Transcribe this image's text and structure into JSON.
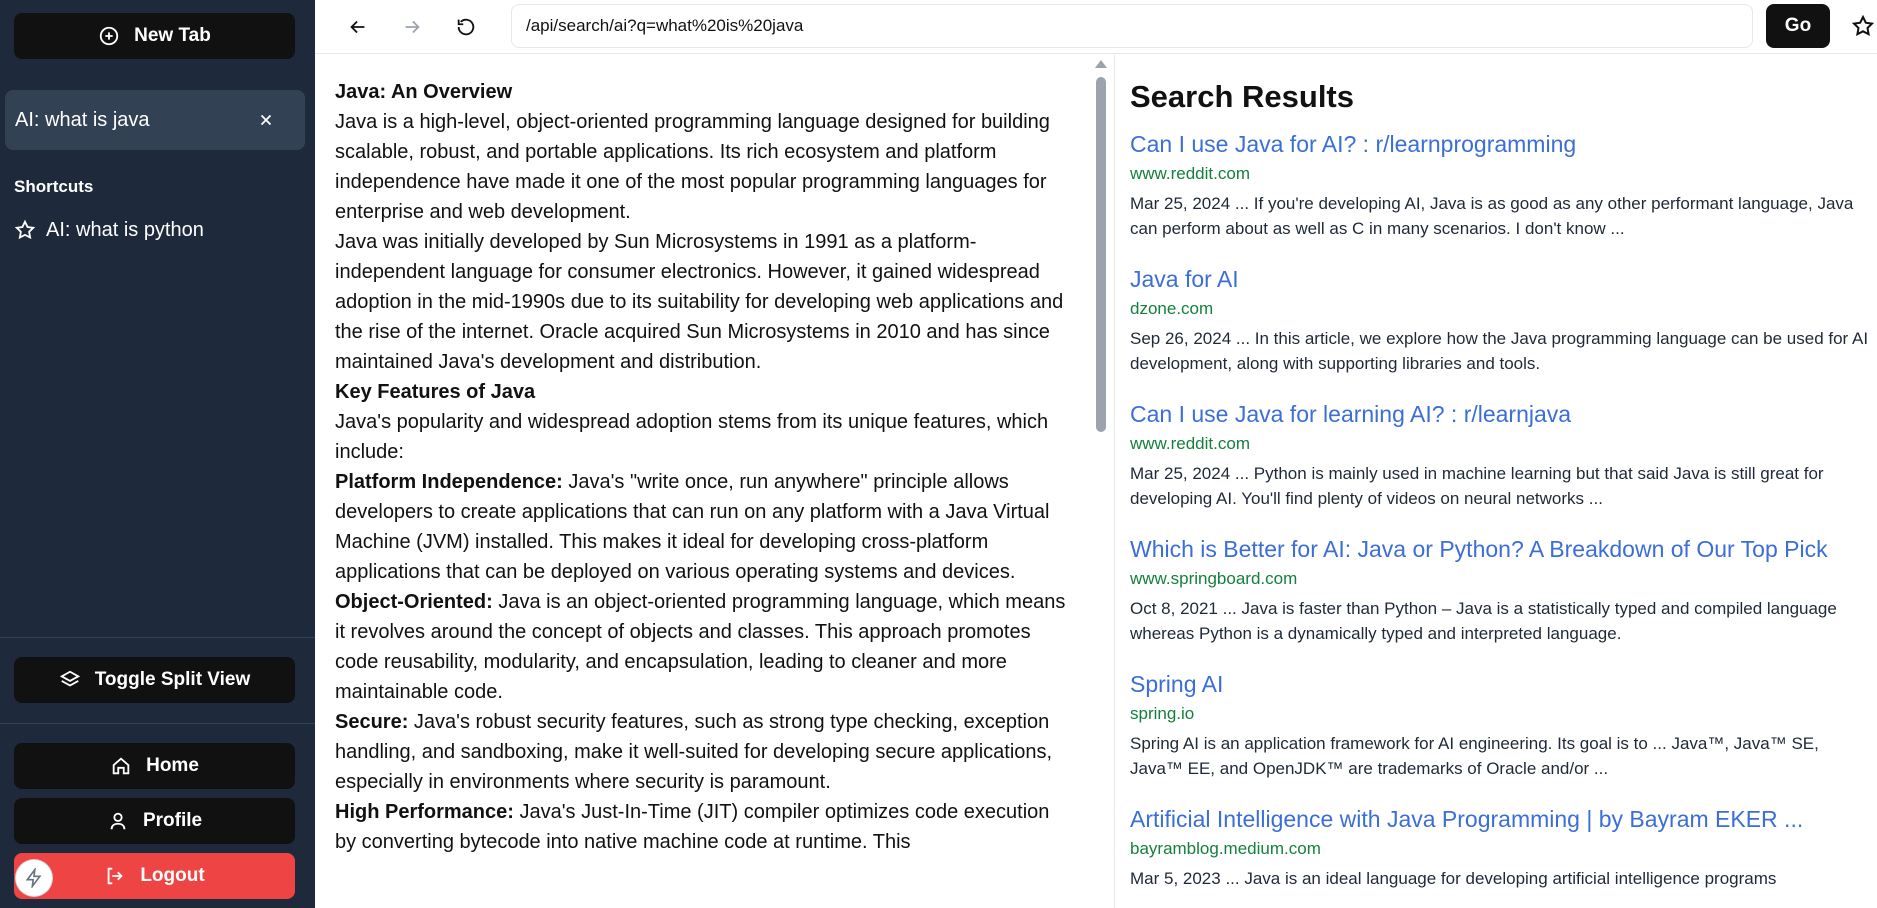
{
  "sidebar": {
    "new_tab_label": "New Tab",
    "active_tab_label": "AI: what is java",
    "shortcuts_heading": "Shortcuts",
    "shortcuts": [
      {
        "label": "AI: what is python",
        "icon": "star-icon"
      }
    ],
    "toggle_split_label": "Toggle Split View",
    "home_label": "Home",
    "profile_label": "Profile",
    "logout_label": "Logout"
  },
  "toolbar": {
    "url_value": "/api/search/ai?q=what%20is%20java",
    "go_label": "Go"
  },
  "article": {
    "h1": "Java: An Overview",
    "p1": "Java is a high-level, object-oriented programming language designed for building scalable, robust, and portable applications. Its rich ecosystem and platform independence have made it one of the most popular programming languages for enterprise and web development.",
    "p2": "Java was initially developed by Sun Microsystems in 1991 as a platform-independent language for consumer electronics. However, it gained widespread adoption in the mid-1990s due to its suitability for developing web applications and the rise of the internet. Oracle acquired Sun Microsystems in 2010 and has since maintained Java's development and distribution.",
    "h2": "Key Features of Java",
    "p3": "Java's popularity and widespread adoption stems from its unique features, which include:",
    "features": [
      {
        "term": "Platform Independence:",
        "text": " Java's \"write once, run anywhere\" principle allows developers to create applications that can run on any platform with a Java Virtual Machine (JVM) installed. This makes it ideal for developing cross-platform applications that can be deployed on various operating systems and devices."
      },
      {
        "term": "Object-Oriented:",
        "text": " Java is an object-oriented programming language, which means it revolves around the concept of objects and classes. This approach promotes code reusability, modularity, and encapsulation, leading to cleaner and more maintainable code."
      },
      {
        "term": "Secure:",
        "text": " Java's robust security features, such as strong type checking, exception handling, and sandboxing, make it well-suited for developing secure applications, especially in environments where security is paramount."
      },
      {
        "term": "High Performance:",
        "text": " Java's Just-In-Time (JIT) compiler optimizes code execution by converting bytecode into native machine code at runtime. This"
      }
    ]
  },
  "results": {
    "heading": "Search Results",
    "items": [
      {
        "title": "Can I use Java for AI? : r/learnprogramming",
        "domain": "www.reddit.com",
        "snippet": "Mar 25, 2024 ... If you're developing AI, Java is as good as any other performant language, Java can perform about as well as C in many scenarios. I don't know ..."
      },
      {
        "title": "Java for AI",
        "domain": "dzone.com",
        "snippet": "Sep 26, 2024 ... In this article, we explore how the Java programming language can be used for AI development, along with supporting libraries and tools."
      },
      {
        "title": "Can I use Java for learning AI? : r/learnjava",
        "domain": "www.reddit.com",
        "snippet": "Mar 25, 2024 ... Python is mainly used in machine learning but that said Java is still great for developing AI. You'll find plenty of videos on neural networks ..."
      },
      {
        "title": "Which is Better for AI: Java or Python? A Breakdown of Our Top Pick",
        "domain": "www.springboard.com",
        "snippet": "Oct 8, 2021 ... Java is faster than Python – Java is a statistically typed and compiled language whereas Python is a dynamically typed and interpreted language."
      },
      {
        "title": "Spring AI",
        "domain": "spring.io",
        "snippet": "Spring AI is an application framework for AI engineering. Its goal is to ... Java™, Java™ SE, Java™ EE, and OpenJDK™ are trademarks of Oracle and/or ..."
      },
      {
        "title": "Artificial Intelligence with Java Programming | by Bayram EKER ...",
        "domain": "bayramblog.medium.com",
        "snippet": "Mar 5, 2023 ... Java is an ideal language for developing artificial intelligence programs"
      }
    ]
  },
  "colors": {
    "sidebar_bg": "#1e293b",
    "link": "#3b6ed8",
    "domain": "#15803d",
    "logout": "#ef4444"
  }
}
